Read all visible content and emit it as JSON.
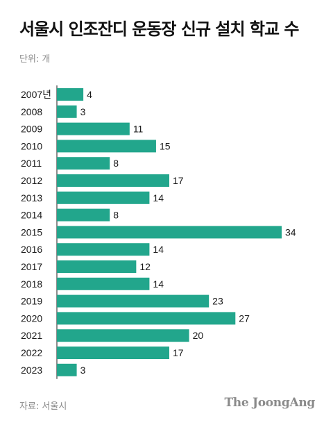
{
  "title": "서울시 인조잔디 운동장 신규 설치 학교 수",
  "unit_label": "단위: 개",
  "source_label": "자료: 서울시",
  "logo_text": "The JoongAng",
  "colors": {
    "bar": "#22a68c",
    "axis": "#1a1a1a"
  },
  "chart_data": {
    "type": "bar",
    "orientation": "horizontal",
    "categories": [
      "2007년",
      "2008",
      "2009",
      "2010",
      "2011",
      "2012",
      "2013",
      "2014",
      "2015",
      "2016",
      "2017",
      "2018",
      "2019",
      "2020",
      "2021",
      "2022",
      "2023"
    ],
    "values": [
      4,
      3,
      11,
      15,
      8,
      17,
      14,
      8,
      34,
      14,
      12,
      14,
      23,
      27,
      20,
      17,
      3
    ],
    "title": "서울시 인조잔디 운동장 신규 설치 학교 수",
    "xlim": [
      0,
      34
    ],
    "grid": false
  }
}
